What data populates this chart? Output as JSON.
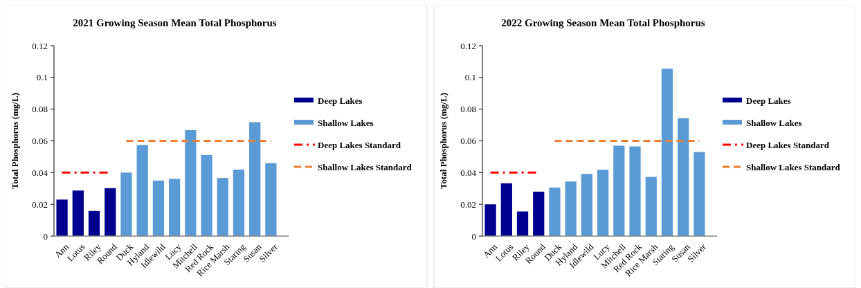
{
  "chart_data": [
    {
      "type": "bar",
      "title": "2021 Growing Season Mean Total Phosphorus",
      "ylabel": "Total Phosphorus (mg/L)",
      "categories": [
        "Ann",
        "Lotus",
        "Riley",
        "Round",
        "Duck",
        "Hyland",
        "Idlewild",
        "Lucy",
        "Mitchell",
        "Red Rock",
        "Rice Marsh",
        "Staring",
        "Susan",
        "Silver"
      ],
      "series": [
        {
          "name": "Deep Lakes",
          "color": "#000090",
          "values": [
            0.023,
            0.0287,
            0.0158,
            0.0302,
            null,
            null,
            null,
            null,
            null,
            null,
            null,
            null,
            null,
            null
          ]
        },
        {
          "name": "Shallow Lakes",
          "color": "#5b9bd5",
          "values": [
            null,
            null,
            null,
            null,
            0.04,
            0.0574,
            0.035,
            0.0361,
            0.0668,
            0.0511,
            0.0366,
            0.0419,
            0.0718,
            0.046
          ]
        },
        {
          "name": "Deep Lakes Standard",
          "type": "line",
          "color": "#ff0000",
          "line_style": "dashdot",
          "values": [
            0.04,
            0.04,
            0.04,
            0.04,
            null,
            null,
            null,
            null,
            null,
            null,
            null,
            null,
            null,
            null
          ]
        },
        {
          "name": "Shallow Lakes Standard",
          "type": "line",
          "color": "#ed7d31",
          "line_style": "dashed",
          "values": [
            null,
            null,
            null,
            null,
            0.06,
            0.06,
            0.06,
            0.06,
            0.06,
            0.06,
            0.06,
            0.06,
            0.06,
            0.06
          ]
        }
      ],
      "ylim": [
        0,
        0.12
      ],
      "yticks": [
        0,
        0.02,
        0.04,
        0.06,
        0.08,
        0.1,
        0.12
      ],
      "legend": "right",
      "grid": false
    },
    {
      "type": "bar",
      "title": "2022 Growing Season Mean Total Phosphorus",
      "ylabel": "Total Phosphorus (mg/L)",
      "categories": [
        "Ann",
        "Lotus",
        "Riley",
        "Round",
        "Duck",
        "Hyland",
        "Idlewild",
        "Lucy",
        "Mitchell",
        "Red Rock",
        "Rice Marsh",
        "Staring",
        "Susan",
        "Silver"
      ],
      "series": [
        {
          "name": "Deep Lakes",
          "color": "#000090",
          "values": [
            0.02,
            0.0333,
            0.0155,
            0.028,
            null,
            null,
            null,
            null,
            null,
            null,
            null,
            null,
            null,
            null
          ]
        },
        {
          "name": "Shallow Lakes",
          "color": "#5b9bd5",
          "values": [
            null,
            null,
            null,
            null,
            0.0306,
            0.0344,
            0.0392,
            0.0418,
            0.057,
            0.0565,
            0.0373,
            0.1055,
            0.0743,
            0.053
          ]
        },
        {
          "name": "Deep Lakes Standard",
          "type": "line",
          "color": "#ff0000",
          "line_style": "dashdot",
          "values": [
            0.04,
            0.04,
            0.04,
            0.04,
            null,
            null,
            null,
            null,
            null,
            null,
            null,
            null,
            null,
            null
          ]
        },
        {
          "name": "Shallow Lakes Standard",
          "type": "line",
          "color": "#ed7d31",
          "line_style": "dashed",
          "values": [
            null,
            null,
            null,
            null,
            0.06,
            0.06,
            0.06,
            0.06,
            0.06,
            0.06,
            0.06,
            0.06,
            0.06,
            0.06
          ]
        }
      ],
      "ylim": [
        0,
        0.12
      ],
      "yticks": [
        0,
        0.02,
        0.04,
        0.06,
        0.08,
        0.1,
        0.12
      ],
      "legend": "right",
      "grid": false
    }
  ]
}
